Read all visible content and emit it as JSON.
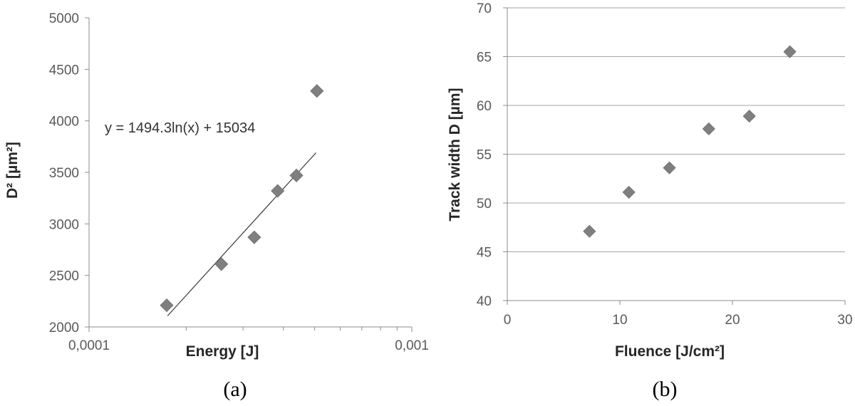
{
  "chart_data": [
    {
      "type": "scatter",
      "panel_label": "(a)",
      "xlabel": "Energy [J]",
      "ylabel": "D² [µm²]",
      "x_scale": "log",
      "xlim": [
        0.0001,
        0.001
      ],
      "ylim": [
        2000,
        5000
      ],
      "x_tick_labels": [
        "0,0001",
        "0,001"
      ],
      "y_ticks": [
        2000,
        2500,
        3000,
        3500,
        4000,
        4500,
        5000
      ],
      "grid": false,
      "marker_color": "#7f7f7f",
      "points": [
        {
          "x": 0.000174,
          "y": 2210
        },
        {
          "x": 0.000257,
          "y": 2610
        },
        {
          "x": 0.000325,
          "y": 2870
        },
        {
          "x": 0.000384,
          "y": 3320
        },
        {
          "x": 0.000439,
          "y": 3470
        },
        {
          "x": 0.000508,
          "y": 4290
        }
      ],
      "trendline": {
        "type": "log",
        "a": 1494.3,
        "b": 15034,
        "x_from": 0.000175,
        "x_to": 0.000505
      },
      "annotation": "y = 1494.3ln(x) + 15034"
    },
    {
      "type": "scatter",
      "panel_label": "(b)",
      "xlabel": "Fluence [J/cm²]",
      "ylabel": "Track width D [µm]",
      "xlim": [
        0,
        30
      ],
      "ylim": [
        40,
        70
      ],
      "x_ticks": [
        0,
        10,
        20,
        30
      ],
      "y_ticks": [
        40,
        45,
        50,
        55,
        60,
        65,
        70
      ],
      "grid": true,
      "marker_color": "#7f7f7f",
      "points": [
        {
          "x": 7.3,
          "y": 47.1
        },
        {
          "x": 10.8,
          "y": 51.1
        },
        {
          "x": 14.4,
          "y": 53.6
        },
        {
          "x": 17.9,
          "y": 57.6
        },
        {
          "x": 21.5,
          "y": 58.9
        },
        {
          "x": 25.1,
          "y": 65.5
        }
      ]
    }
  ]
}
